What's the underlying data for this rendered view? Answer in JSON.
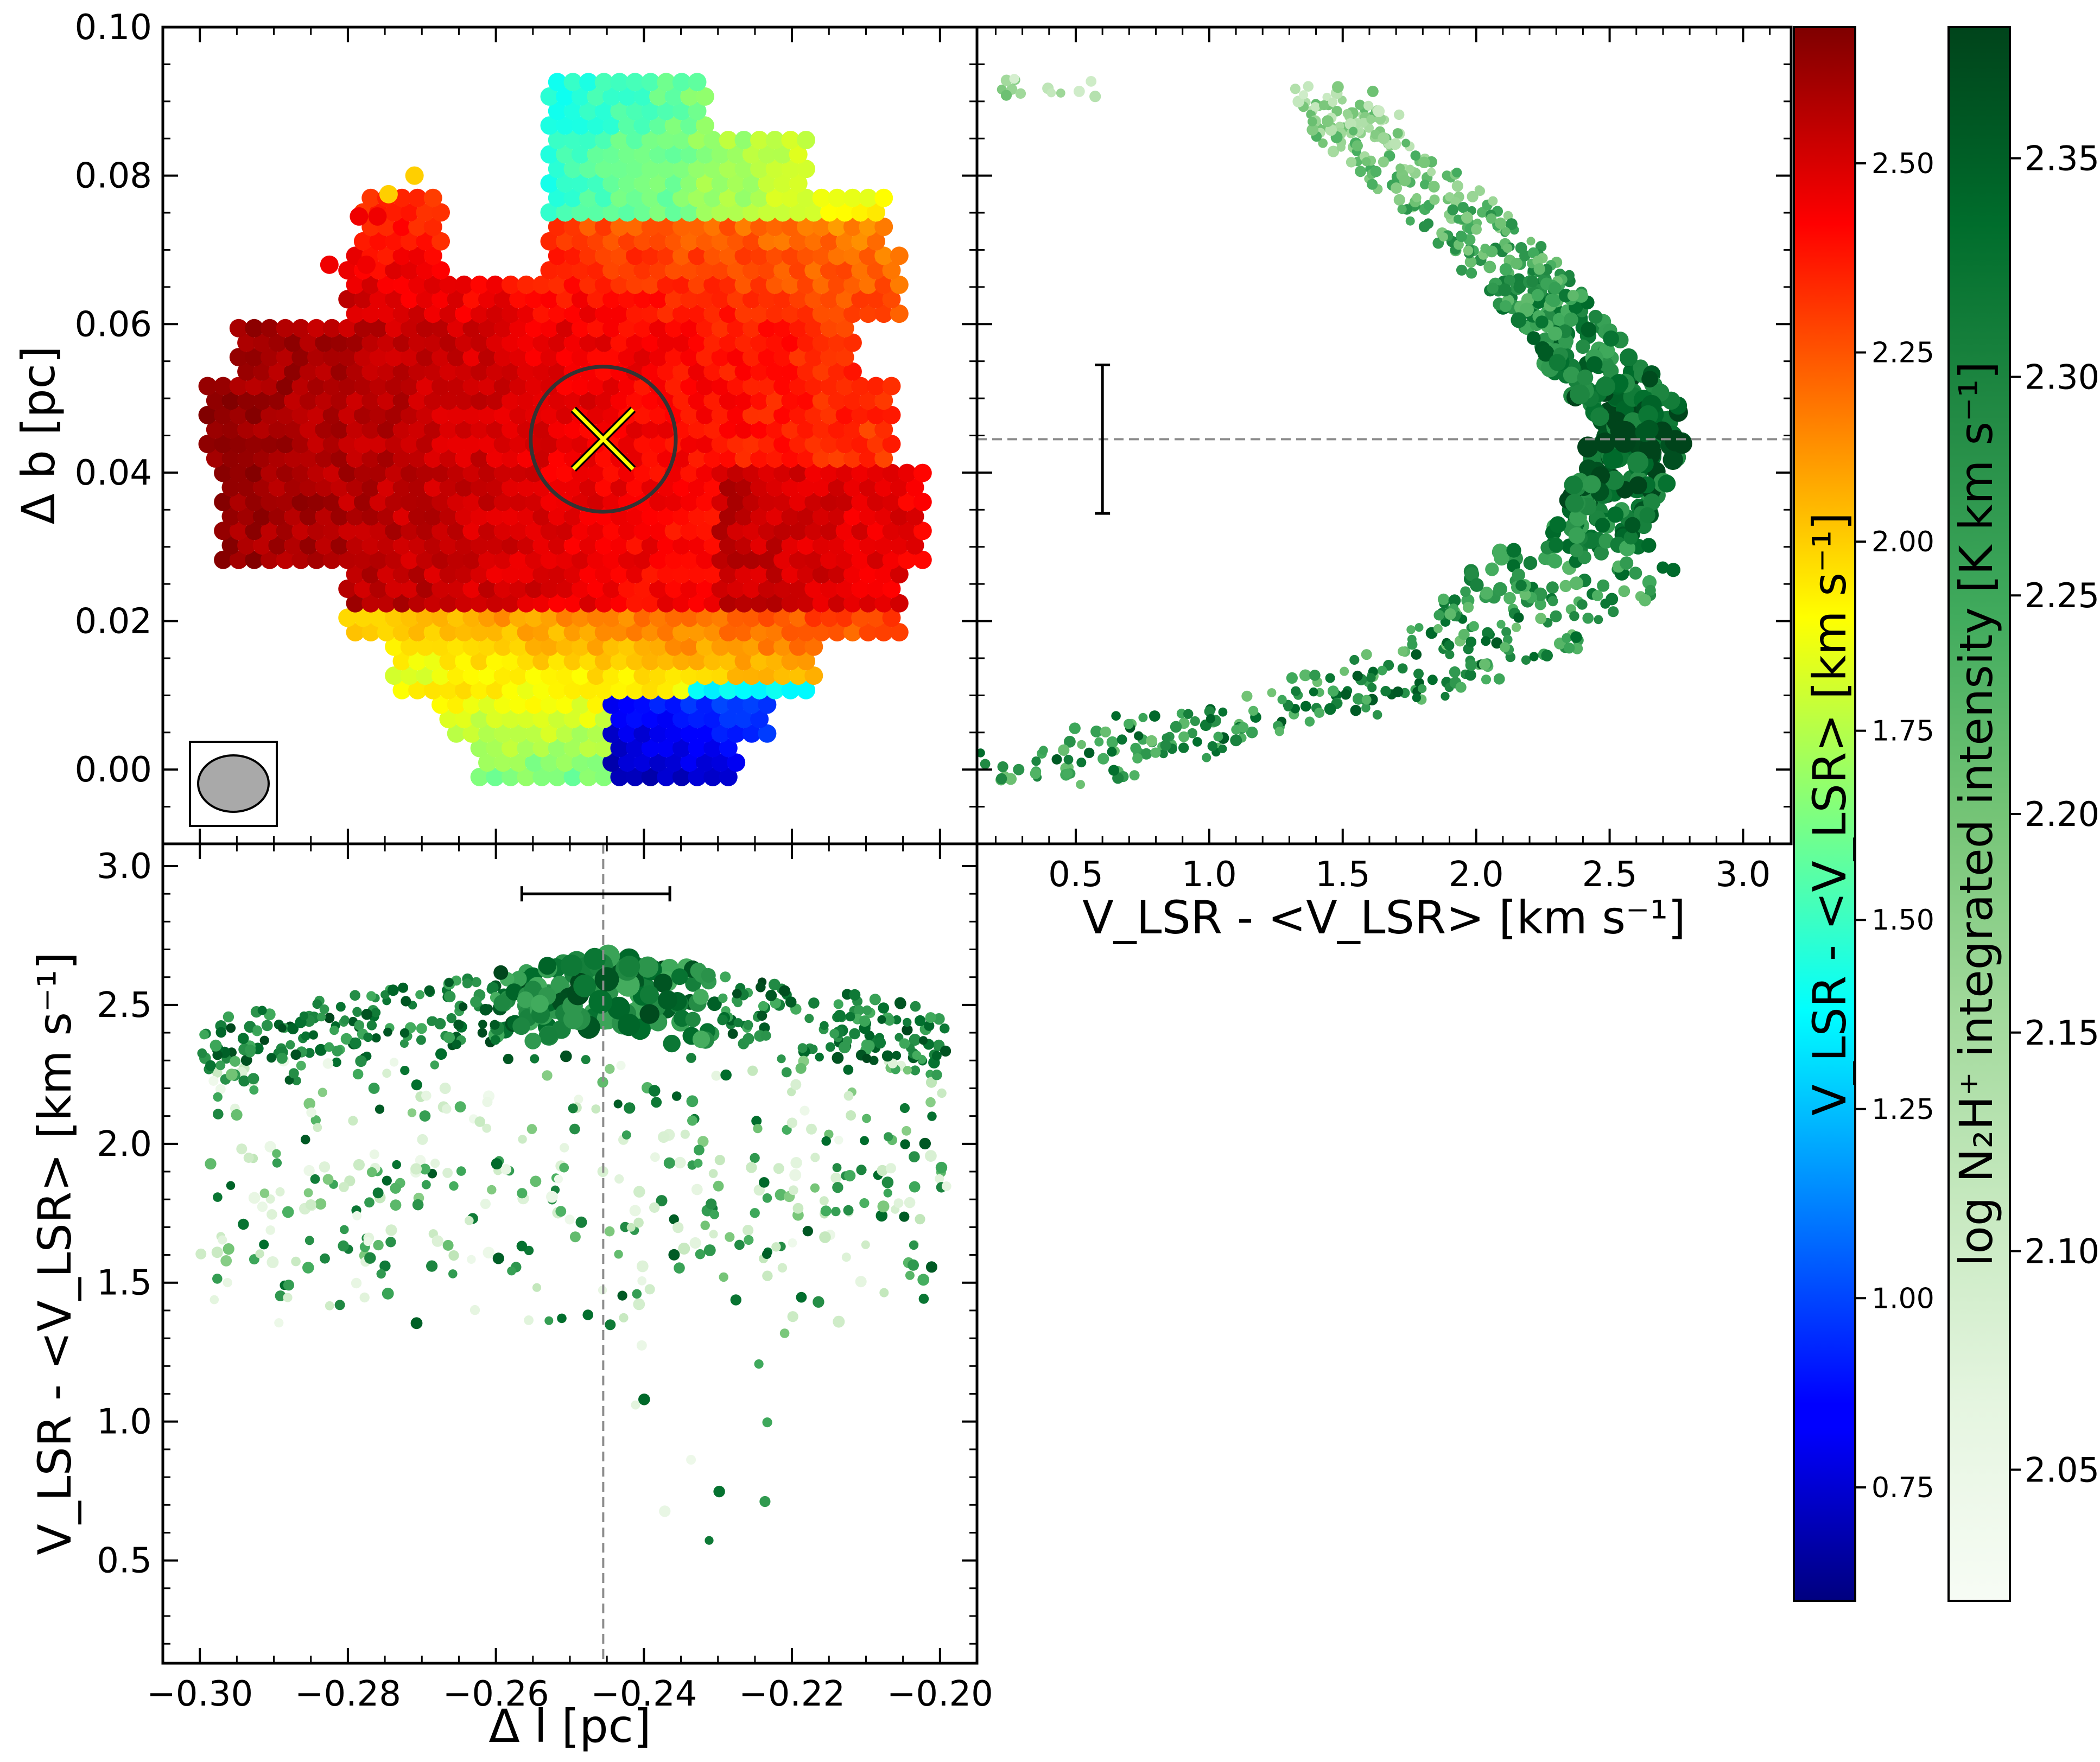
{
  "chart_data": [
    {
      "type": "scatter",
      "panel": "top-left",
      "description_source": "velocity map",
      "xlabel": "",
      "ylabel": "Δ b [pc]",
      "xlim": [
        -0.305,
        -0.195
      ],
      "ylim": [
        -0.01,
        0.1
      ],
      "xticks": [
        -0.3,
        -0.28,
        -0.26,
        -0.24,
        -0.22,
        -0.2
      ],
      "yticks": [
        0.0,
        0.02,
        0.04,
        0.06,
        0.08,
        0.1
      ],
      "ytick_labels": [
        "0.00",
        "0.02",
        "0.04",
        "0.06",
        "0.08",
        "0.10"
      ],
      "marker_center": {
        "x": -0.2455,
        "y": 0.0445
      },
      "circle_radius_pc": 0.0098,
      "colorbar": {
        "label": "V_LSR - <V_LSR> [km s⁻¹]",
        "range": [
          0.6,
          2.68
        ],
        "colormap": "jet",
        "ticks": [
          0.75,
          1.0,
          1.25,
          1.5,
          1.75,
          2.0,
          2.25,
          2.5
        ],
        "tick_labels": [
          "0.75",
          "1.00",
          "1.25",
          "1.50",
          "1.75",
          "2.00",
          "2.25",
          "2.50"
        ]
      },
      "beam_ellipse": true
    },
    {
      "type": "scatter",
      "panel": "top-right",
      "xlabel": "V_LSR - <V_LSR> [km s⁻¹]",
      "ylabel": "",
      "xlim": [
        0.13,
        3.18
      ],
      "ylim": [
        -0.01,
        0.1
      ],
      "xticks": [
        0.5,
        1.0,
        1.5,
        2.0,
        2.5,
        3.0
      ],
      "xtick_labels": [
        "0.5",
        "1.0",
        "1.5",
        "2.0",
        "2.5",
        "3.0"
      ],
      "hline_y": 0.0445,
      "errorbar": {
        "x": 0.6,
        "y": 0.0445,
        "yerr": 0.01
      },
      "trend": [
        [
          1.45,
          0.091
        ],
        [
          1.65,
          0.083
        ],
        [
          1.95,
          0.074
        ],
        [
          2.2,
          0.065
        ],
        [
          2.4,
          0.057
        ],
        [
          2.55,
          0.05
        ],
        [
          2.62,
          0.045
        ],
        [
          2.55,
          0.039
        ],
        [
          2.45,
          0.031
        ],
        [
          2.3,
          0.024
        ],
        [
          2.0,
          0.016
        ],
        [
          1.5,
          0.01
        ],
        [
          1.0,
          0.006
        ],
        [
          0.4,
          0.0
        ]
      ]
    },
    {
      "type": "scatter",
      "panel": "bottom-left",
      "xlabel": "Δ l [pc]",
      "ylabel": "V_LSR - <V_LSR> [km s⁻¹]",
      "xlim": [
        -0.305,
        -0.195
      ],
      "ylim": [
        0.13,
        3.08
      ],
      "xticks": [
        -0.3,
        -0.28,
        -0.26,
        -0.24,
        -0.22,
        -0.2
      ],
      "xtick_labels": [
        "−0.30",
        "−0.28",
        "−0.26",
        "−0.24",
        "−0.22",
        "−0.20"
      ],
      "yticks": [
        0.5,
        1.0,
        1.5,
        2.0,
        2.5,
        3.0
      ],
      "ytick_labels": [
        "0.5",
        "1.0",
        "1.5",
        "2.0",
        "2.5",
        "3.0"
      ],
      "vline_x": -0.2455,
      "errorbar": {
        "x": -0.2465,
        "y": 2.9,
        "xerr": 0.01
      },
      "colorbar": {
        "label": "log N₂H⁺ integrated intensity [K km s⁻¹]",
        "range": [
          2.02,
          2.38
        ],
        "colormap": "Greens",
        "ticks": [
          2.05,
          2.1,
          2.15,
          2.2,
          2.25,
          2.3,
          2.35
        ],
        "tick_labels": [
          "2.05",
          "2.10",
          "2.15",
          "2.20",
          "2.25",
          "2.30",
          "2.35"
        ]
      }
    }
  ],
  "labels": {
    "map_ylabel": "Δ b [pc]",
    "pv_xlabel": "V_LSR - <V_LSR> [km s⁻¹]",
    "bottom_xlabel": "Δ l [pc]",
    "bottom_ylabel": "V_LSR - <V_LSR> [km s⁻¹]",
    "cb1_label": "V_LSR - <V_LSR> [km s⁻¹]",
    "cb2_label": "log N₂H⁺ integrated intensity [K km s⁻¹]"
  },
  "colors": {
    "grid_dash": "#8c8c8c",
    "cross": "#ffff00",
    "circle": "#333333",
    "beam_fill": "#a9a9a9"
  }
}
